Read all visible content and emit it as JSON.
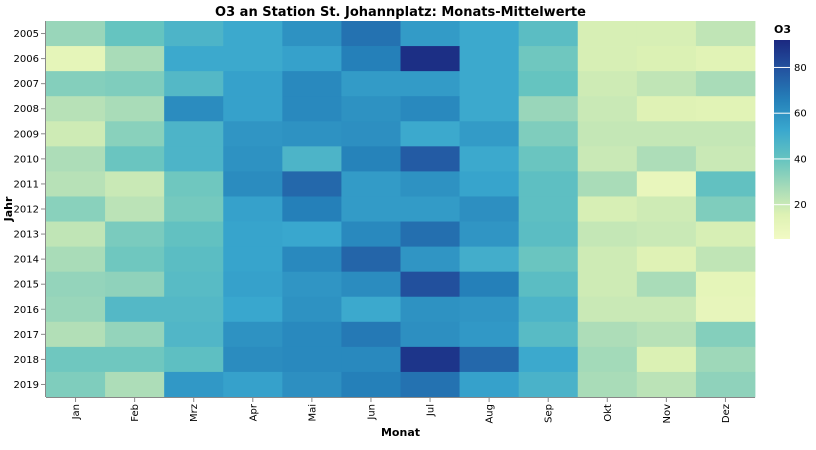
{
  "chart_data": {
    "type": "heatmap",
    "title": "O3 an Station St. Johannplatz: Monats-Mittelwerte",
    "xlabel": "Monat",
    "ylabel": "Jahr",
    "x_categories": [
      "Jan",
      "Feb",
      "Mrz",
      "Apr",
      "Mai",
      "Jun",
      "Jul",
      "Aug",
      "Sep",
      "Okt",
      "Nov",
      "Dez"
    ],
    "y_categories": [
      "2005",
      "2006",
      "2007",
      "2008",
      "2009",
      "2010",
      "2011",
      "2012",
      "2013",
      "2014",
      "2015",
      "2016",
      "2017",
      "2018",
      "2019"
    ],
    "values": [
      [
        30,
        40,
        47,
        52,
        60,
        70,
        57,
        52,
        43,
        17,
        17,
        22
      ],
      [
        12,
        27,
        52,
        52,
        55,
        66,
        90,
        52,
        38,
        17,
        16,
        14
      ],
      [
        34,
        35,
        45,
        55,
        63,
        57,
        57,
        52,
        40,
        19,
        22,
        27
      ],
      [
        24,
        27,
        62,
        55,
        63,
        60,
        63,
        52,
        30,
        20,
        15,
        14
      ],
      [
        19,
        33,
        47,
        59,
        60,
        61,
        52,
        57,
        35,
        21,
        21,
        21
      ],
      [
        26,
        39,
        47,
        60,
        47,
        65,
        77,
        52,
        39,
        20,
        26,
        20
      ],
      [
        24,
        20,
        38,
        62,
        73,
        57,
        60,
        54,
        42,
        27,
        10,
        41
      ],
      [
        33,
        23,
        37,
        55,
        66,
        57,
        57,
        61,
        42,
        17,
        19,
        35
      ],
      [
        22,
        36,
        41,
        54,
        53,
        63,
        71,
        59,
        43,
        21,
        20,
        17
      ],
      [
        27,
        38,
        43,
        54,
        63,
        74,
        59,
        50,
        39,
        19,
        15,
        22
      ],
      [
        31,
        32,
        44,
        55,
        59,
        62,
        80,
        66,
        43,
        19,
        27,
        12
      ],
      [
        30,
        45,
        45,
        53,
        60,
        52,
        60,
        59,
        47,
        20,
        20,
        11
      ],
      [
        25,
        31,
        46,
        60,
        63,
        68,
        61,
        58,
        44,
        26,
        24,
        34
      ],
      [
        38,
        38,
        42,
        62,
        63,
        63,
        88,
        73,
        52,
        28,
        16,
        29
      ],
      [
        35,
        26,
        58,
        55,
        61,
        66,
        70,
        55,
        48,
        27,
        23,
        32
      ]
    ],
    "color_range": [
      5,
      92
    ],
    "legend": {
      "title": "O3",
      "ticks": [
        20,
        40,
        60,
        80
      ],
      "placement": "right"
    }
  }
}
